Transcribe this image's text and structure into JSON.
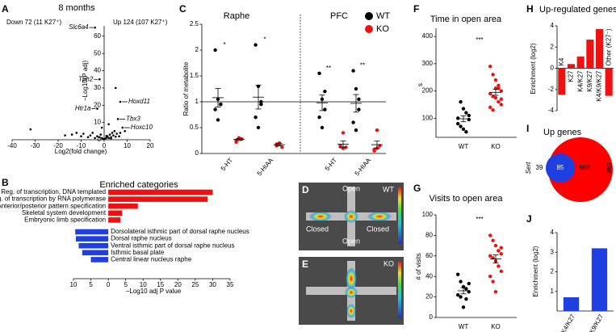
{
  "chart_data": [
    {
      "panel": "A",
      "type": "scatter",
      "title": "8 months",
      "annotations": [
        "Down 72 (11 K27⁺)",
        "Up 124 (107 K27⁺)"
      ],
      "x_label": "Log2(fold change)",
      "y_label": "−Log10(P adj)",
      "color": "#000000",
      "xlim": [
        -40,
        20
      ],
      "ylim": [
        0,
        66
      ],
      "xticks": [
        -40,
        -30,
        -20,
        -10,
        0,
        10,
        20
      ],
      "yticks": [
        0,
        10,
        20,
        30,
        40,
        50,
        60
      ],
      "x": [
        -4,
        -2,
        -3,
        7,
        6,
        8,
        -32,
        -17,
        -14,
        -12,
        -10,
        -9,
        -7,
        -6,
        -5,
        -4,
        -3,
        -2,
        -1.5,
        -1,
        -0.5,
        0.5,
        1,
        1.5,
        2,
        2.5,
        3,
        3.5,
        4,
        4.5,
        5,
        5.5,
        6.5,
        7,
        9,
        2,
        -1,
        5,
        1,
        3
      ],
      "y": [
        65,
        35,
        18,
        22,
        12,
        7,
        6,
        2.5,
        3,
        4,
        2,
        3.5,
        1.5,
        2.5,
        4,
        1,
        2,
        1.5,
        3,
        1,
        0.5,
        0.6,
        1.2,
        2,
        1,
        3,
        1.5,
        4,
        2.5,
        5,
        1.8,
        3.5,
        2,
        4,
        5,
        9,
        7,
        30,
        2.2,
        0.8
      ],
      "point_labels": [
        "Slc6a4",
        "Tph2",
        "Htr1a",
        "Hoxd11",
        "Tbx3",
        "Hoxc10",
        null,
        null,
        null,
        null,
        null,
        null,
        null,
        null,
        null,
        null,
        null,
        null,
        null,
        null,
        null,
        null,
        null,
        null,
        null,
        null,
        null,
        null,
        null,
        null,
        null,
        null,
        null,
        null,
        null,
        null,
        null,
        null,
        null,
        null
      ]
    },
    {
      "panel": "B",
      "type": "hbar",
      "title": "Enriched categories",
      "x_label": "−Log10 adj P value",
      "xlim": [
        -10,
        35
      ],
      "xticks": [
        {
          "value": -10,
          "label": "10"
        },
        {
          "value": -5,
          "label": "5"
        },
        0,
        5,
        10,
        15,
        20,
        25,
        30,
        35
      ],
      "groups": [
        {
          "direction": "right",
          "color": "#ee1111",
          "categories": [
            "Reg. of transcription, DNA templated",
            "Reg. of transcription by RNA polymerase",
            "Anterior/posterior pattern specification",
            "Skeletal system development",
            "Embryonic limb specification"
          ],
          "values": [
            30,
            28.5,
            8.5,
            4,
            3.5
          ]
        },
        {
          "direction": "left",
          "color": "#1f3fe0",
          "categories": [
            "Dorsolateral isthmic part of dorsal raphe nucleus",
            "Dorsal raphe nucleus",
            "Ventral isthmic part of dorsal raphe nucleus",
            "Isthmic basal plate",
            "Central linear nucleus raphe"
          ],
          "values": [
            9.5,
            9.3,
            8.5,
            7.5,
            5
          ]
        }
      ]
    },
    {
      "panel": "C",
      "type": "strip",
      "group_titles": [
        "Raphe",
        "PFC"
      ],
      "y_label": "Ratio of metabolite",
      "categories": [
        "5-HT",
        "5-HIAA",
        "5-HT",
        "5-HIAA"
      ],
      "ylim": [
        0,
        2.5
      ],
      "yticks": [
        0,
        0.5,
        1,
        1.5,
        2,
        2.5
      ],
      "reference_line": 1,
      "significance": [
        "*",
        "*",
        "**",
        "**"
      ],
      "legend": "top-right",
      "series": [
        {
          "name": "WT",
          "color": "#000000",
          "values": [
            [
              2.0,
              1.05,
              0.95,
              0.85,
              0.65,
              0.95
            ],
            [
              2.1,
              1.3,
              0.95,
              0.7,
              0.5,
              1.0
            ],
            [
              1.55,
              1.05,
              0.85,
              0.7,
              0.5,
              1.2
            ],
            [
              1.6,
              1.25,
              0.85,
              0.6,
              0.45,
              1.05
            ]
          ],
          "mean": [
            1.08,
            1.09,
            0.98,
            0.97
          ],
          "sem": [
            0.18,
            0.23,
            0.15,
            0.17
          ]
        },
        {
          "name": "KO",
          "color": "#ee1111",
          "values": [
            [
              0.25,
              0.3,
              0.28,
              0.22,
              0.3
            ],
            [
              0.15,
              0.2,
              0.12,
              0.18,
              0.2
            ],
            [
              0.15,
              0.1,
              0.12,
              0.13,
              0.4
            ],
            [
              0.05,
              0.1,
              0.15,
              0.08,
              0.45
            ]
          ],
          "mean": [
            0.27,
            0.17,
            0.18,
            0.17
          ],
          "sem": [
            0.02,
            0.02,
            0.06,
            0.07
          ]
        }
      ]
    },
    {
      "panel": "F",
      "type": "strip",
      "title": "Time in open area",
      "y_label": "s",
      "categories": [
        "WT",
        "KO"
      ],
      "colors": [
        "#000000",
        "#ee1111"
      ],
      "ylim": [
        30,
        430
      ],
      "yticks": [
        100,
        200,
        300,
        400
      ],
      "significance": "***",
      "values": [
        [
          100,
          160,
          135,
          120,
          95,
          80,
          70,
          60,
          50,
          110
        ],
        [
          290,
          260,
          240,
          210,
          200,
          190,
          180,
          175,
          160,
          150,
          140,
          130,
          210,
          220,
          170
        ]
      ],
      "mean": [
        98,
        195
      ],
      "sem": [
        11,
        11
      ]
    },
    {
      "panel": "G",
      "type": "strip",
      "title": "Visits to open area",
      "y_label": "# of visits",
      "categories": [
        "WT",
        "KO"
      ],
      "colors": [
        "#000000",
        "#ee1111"
      ],
      "ylim": [
        0,
        100
      ],
      "yticks": [
        0,
        20,
        40,
        60,
        80,
        100
      ],
      "significance": "***",
      "values": [
        [
          42,
          35,
          30,
          28,
          25,
          22,
          20,
          10,
          18,
          33
        ],
        [
          80,
          75,
          70,
          65,
          62,
          60,
          58,
          55,
          50,
          45,
          40,
          35,
          25,
          65,
          68
        ]
      ],
      "mean": [
        26,
        57
      ],
      "sem": [
        3,
        4
      ]
    },
    {
      "panel": "H",
      "type": "bar",
      "title": "Up-regulated genes",
      "y_label": "Enrichment (log2)",
      "color": "#ee1111",
      "categories": [
        "K4",
        "K27",
        "K4/K27",
        "K9/K27",
        "K4/K9/K27",
        "Other (K27⁻)"
      ],
      "values": [
        -2.5,
        0.4,
        1.1,
        2.7,
        3.7,
        -2.6
      ],
      "ylim": [
        -4,
        4
      ],
      "yticks": [
        -4,
        -2,
        0,
        2,
        4
      ]
    },
    {
      "panel": "I",
      "type": "venn",
      "title": "Up genes",
      "sets": [
        "Sert",
        "Dat"
      ],
      "colors": [
        "#1f3fe0",
        "#ff0000"
      ],
      "values": [
        39,
        85,
        569
      ]
    },
    {
      "panel": "J",
      "type": "bar",
      "y_label": "Enrichment (log2)",
      "color": "#1f3fe0",
      "categories": [
        "K4/K27",
        "K9/K27"
      ],
      "values": [
        0.7,
        3.2
      ],
      "ylim": [
        0,
        4
      ],
      "yticks": [
        1,
        2,
        3,
        4
      ]
    }
  ],
  "images": [
    {
      "panel": "D",
      "label": "WT",
      "arm_labels": [
        "Open",
        "Closed",
        "Closed",
        "Open"
      ]
    },
    {
      "panel": "E",
      "label": "KO"
    }
  ]
}
